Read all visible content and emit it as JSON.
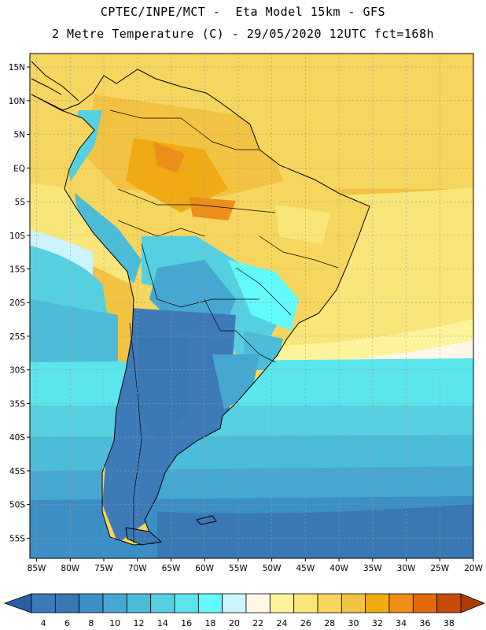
{
  "header": {
    "line1": "CPTEC/INPE/MCT -  Eta Model 15km - GFS",
    "line2": "2 Metre Temperature (C) - 29/05/2020 12UTC fct=168h"
  },
  "map": {
    "lon_range": [
      -86,
      -20
    ],
    "lat_range": [
      -58,
      17
    ],
    "lon_ticks": [
      "85W",
      "80W",
      "75W",
      "70W",
      "65W",
      "60W",
      "55W",
      "50W",
      "45W",
      "40W",
      "35W",
      "30W",
      "25W",
      "20W"
    ],
    "lat_ticks": [
      "15N",
      "10N",
      "5N",
      "EQ",
      "5S",
      "10S",
      "15S",
      "20S",
      "25S",
      "30S",
      "35S",
      "40S",
      "45S",
      "50S",
      "55S"
    ]
  },
  "colorbar": {
    "labels": [
      "4",
      "6",
      "8",
      "10",
      "12",
      "14",
      "16",
      "18",
      "20",
      "22",
      "24",
      "26",
      "28",
      "30",
      "32",
      "34",
      "36",
      "38"
    ],
    "colors": [
      "#3f7ab8",
      "#3a78b4",
      "#3b8fc4",
      "#46a8d0",
      "#4cbcd8",
      "#56d0e0",
      "#5ae6ec",
      "#62fafa",
      "#ccf4fc",
      "#fff8e8",
      "#fcf49a",
      "#f8e67a",
      "#f6d65e",
      "#f2c242",
      "#f0aa14",
      "#ec8e1a",
      "#e06a0a",
      "#c84a08"
    ],
    "low_color": "#2a5fa5",
    "high_color": "#a83e06"
  }
}
